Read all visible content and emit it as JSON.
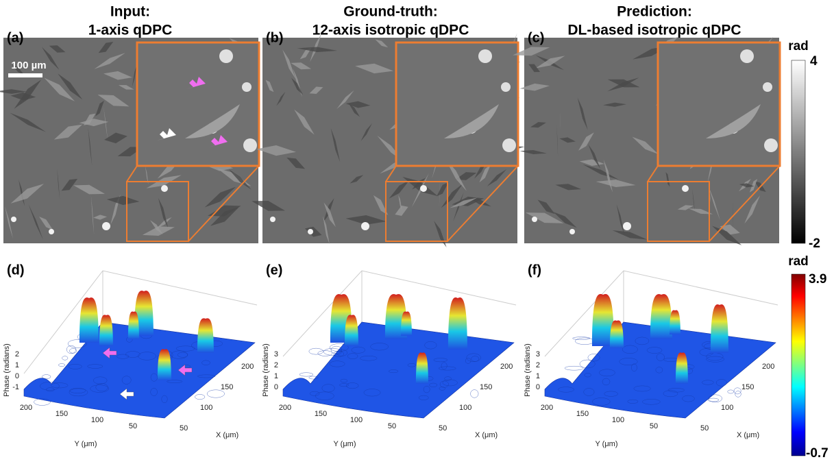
{
  "panels": [
    {
      "label": "(a)",
      "title": [
        "Input:",
        "1-axis qDPC"
      ]
    },
    {
      "label": "(b)",
      "title": [
        "Ground-truth:",
        "12-axis isotropic qDPC"
      ]
    },
    {
      "label": "(c)",
      "title": [
        "Prediction:",
        "DL-based isotropic qDPC"
      ]
    }
  ],
  "scale_bar": "100 µm",
  "colorbar_gray": {
    "unit": "rad",
    "max": 4,
    "min": -2
  },
  "surface_panels": [
    {
      "label": "(d)",
      "z_ticks": [
        2,
        1,
        0,
        -1
      ]
    },
    {
      "label": "(e)",
      "z_ticks": [
        3,
        2,
        1,
        0
      ]
    },
    {
      "label": "(f)",
      "z_ticks": [
        3,
        2,
        1,
        0
      ]
    }
  ],
  "surface_axes": {
    "z_label": "Phase (radians)",
    "y_label": "Y (μm)",
    "x_label": "X (μm)",
    "y_ticks": [
      200,
      150,
      100,
      50
    ],
    "x_ticks": [
      50,
      100,
      150,
      200
    ]
  },
  "colorbar_jet": {
    "unit": "rad",
    "max": 3.9,
    "min": -0.7
  }
}
